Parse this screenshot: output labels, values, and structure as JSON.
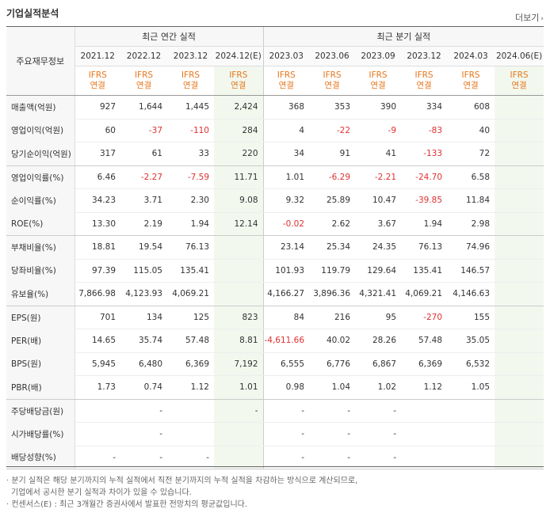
{
  "section_title": "기업실적분석",
  "more_label": "더보기",
  "header": {
    "label_col": "주요재무정보",
    "annual_group": "최근 연간 실적",
    "quarter_group": "최근 분기 실적",
    "annual_periods": [
      "2021.12",
      "2022.12",
      "2023.12",
      "2024.12(E)"
    ],
    "quarter_periods": [
      "2023.03",
      "2023.06",
      "2023.09",
      "2023.12",
      "2024.03",
      "2024.06(E)"
    ],
    "ifrs_top": "IFRS",
    "ifrs_bottom": "연결"
  },
  "rows": [
    {
      "label": "매출액(억원)",
      "values": [
        "927",
        "1,644",
        "1,445",
        "2,424",
        "368",
        "353",
        "390",
        "334",
        "608",
        ""
      ]
    },
    {
      "label": "영업이익(억원)",
      "values": [
        "60",
        "-37",
        "-110",
        "284",
        "4",
        "-22",
        "-9",
        "-83",
        "40",
        ""
      ]
    },
    {
      "label": "당기순이익(억원)",
      "values": [
        "317",
        "61",
        "33",
        "220",
        "34",
        "91",
        "41",
        "-133",
        "72",
        ""
      ]
    },
    {
      "label": "영업이익률(%)",
      "values": [
        "6.46",
        "-2.27",
        "-7.59",
        "11.71",
        "1.01",
        "-6.29",
        "-2.21",
        "-24.70",
        "6.58",
        ""
      ]
    },
    {
      "label": "순이익률(%)",
      "values": [
        "34.23",
        "3.71",
        "2.30",
        "9.08",
        "9.32",
        "25.89",
        "10.47",
        "-39.85",
        "11.84",
        ""
      ]
    },
    {
      "label": "ROE(%)",
      "values": [
        "13.30",
        "2.19",
        "1.94",
        "12.14",
        "-0.02",
        "2.62",
        "3.67",
        "1.94",
        "2.98",
        ""
      ]
    },
    {
      "label": "부채비율(%)",
      "values": [
        "18.81",
        "19.54",
        "76.13",
        "",
        "23.14",
        "25.34",
        "24.35",
        "76.13",
        "74.96",
        ""
      ]
    },
    {
      "label": "당좌비율(%)",
      "values": [
        "97.39",
        "115.05",
        "135.41",
        "",
        "101.93",
        "119.79",
        "129.64",
        "135.41",
        "146.57",
        ""
      ]
    },
    {
      "label": "유보율(%)",
      "values": [
        "7,866.98",
        "4,123.93",
        "4,069.21",
        "",
        "4,166.27",
        "3,896.36",
        "4,321.41",
        "4,069.21",
        "4,146.63",
        ""
      ]
    },
    {
      "label": "EPS(원)",
      "values": [
        "701",
        "134",
        "125",
        "823",
        "84",
        "216",
        "95",
        "-270",
        "155",
        ""
      ]
    },
    {
      "label": "PER(배)",
      "values": [
        "14.65",
        "35.74",
        "57.48",
        "8.81",
        "-4,611.66",
        "40.02",
        "28.26",
        "57.48",
        "35.05",
        ""
      ]
    },
    {
      "label": "BPS(원)",
      "values": [
        "5,945",
        "6,480",
        "6,369",
        "7,192",
        "6,555",
        "6,776",
        "6,867",
        "6,369",
        "6,532",
        ""
      ]
    },
    {
      "label": "PBR(배)",
      "values": [
        "1.73",
        "0.74",
        "1.12",
        "1.01",
        "0.98",
        "1.04",
        "1.02",
        "1.12",
        "1.05",
        ""
      ]
    },
    {
      "label": "주당배당금(원)",
      "values": [
        "",
        "-",
        "",
        "-",
        "-",
        "-",
        "-",
        "",
        "",
        ""
      ]
    },
    {
      "label": "시가배당률(%)",
      "values": [
        "",
        "-",
        "",
        "",
        "-",
        "-",
        "-",
        "",
        "",
        ""
      ]
    },
    {
      "label": "배당성향(%)",
      "values": [
        "-",
        "-",
        "-",
        "",
        "-",
        "-",
        "-",
        "",
        "",
        ""
      ]
    }
  ],
  "notes": [
    "· 분기 실적은 해당 분기까지의 누적 실적에서 직전 분기까지의 누적 실적을 차감하는 방식으로 계산되므로,",
    "  기업에서 공시한 분기 실적과 차이가 있을 수 있습니다.",
    "· 컨센서스(E) : 최근 3개월간 증권사에서 발표한 전망치의 평균값입니다."
  ]
}
